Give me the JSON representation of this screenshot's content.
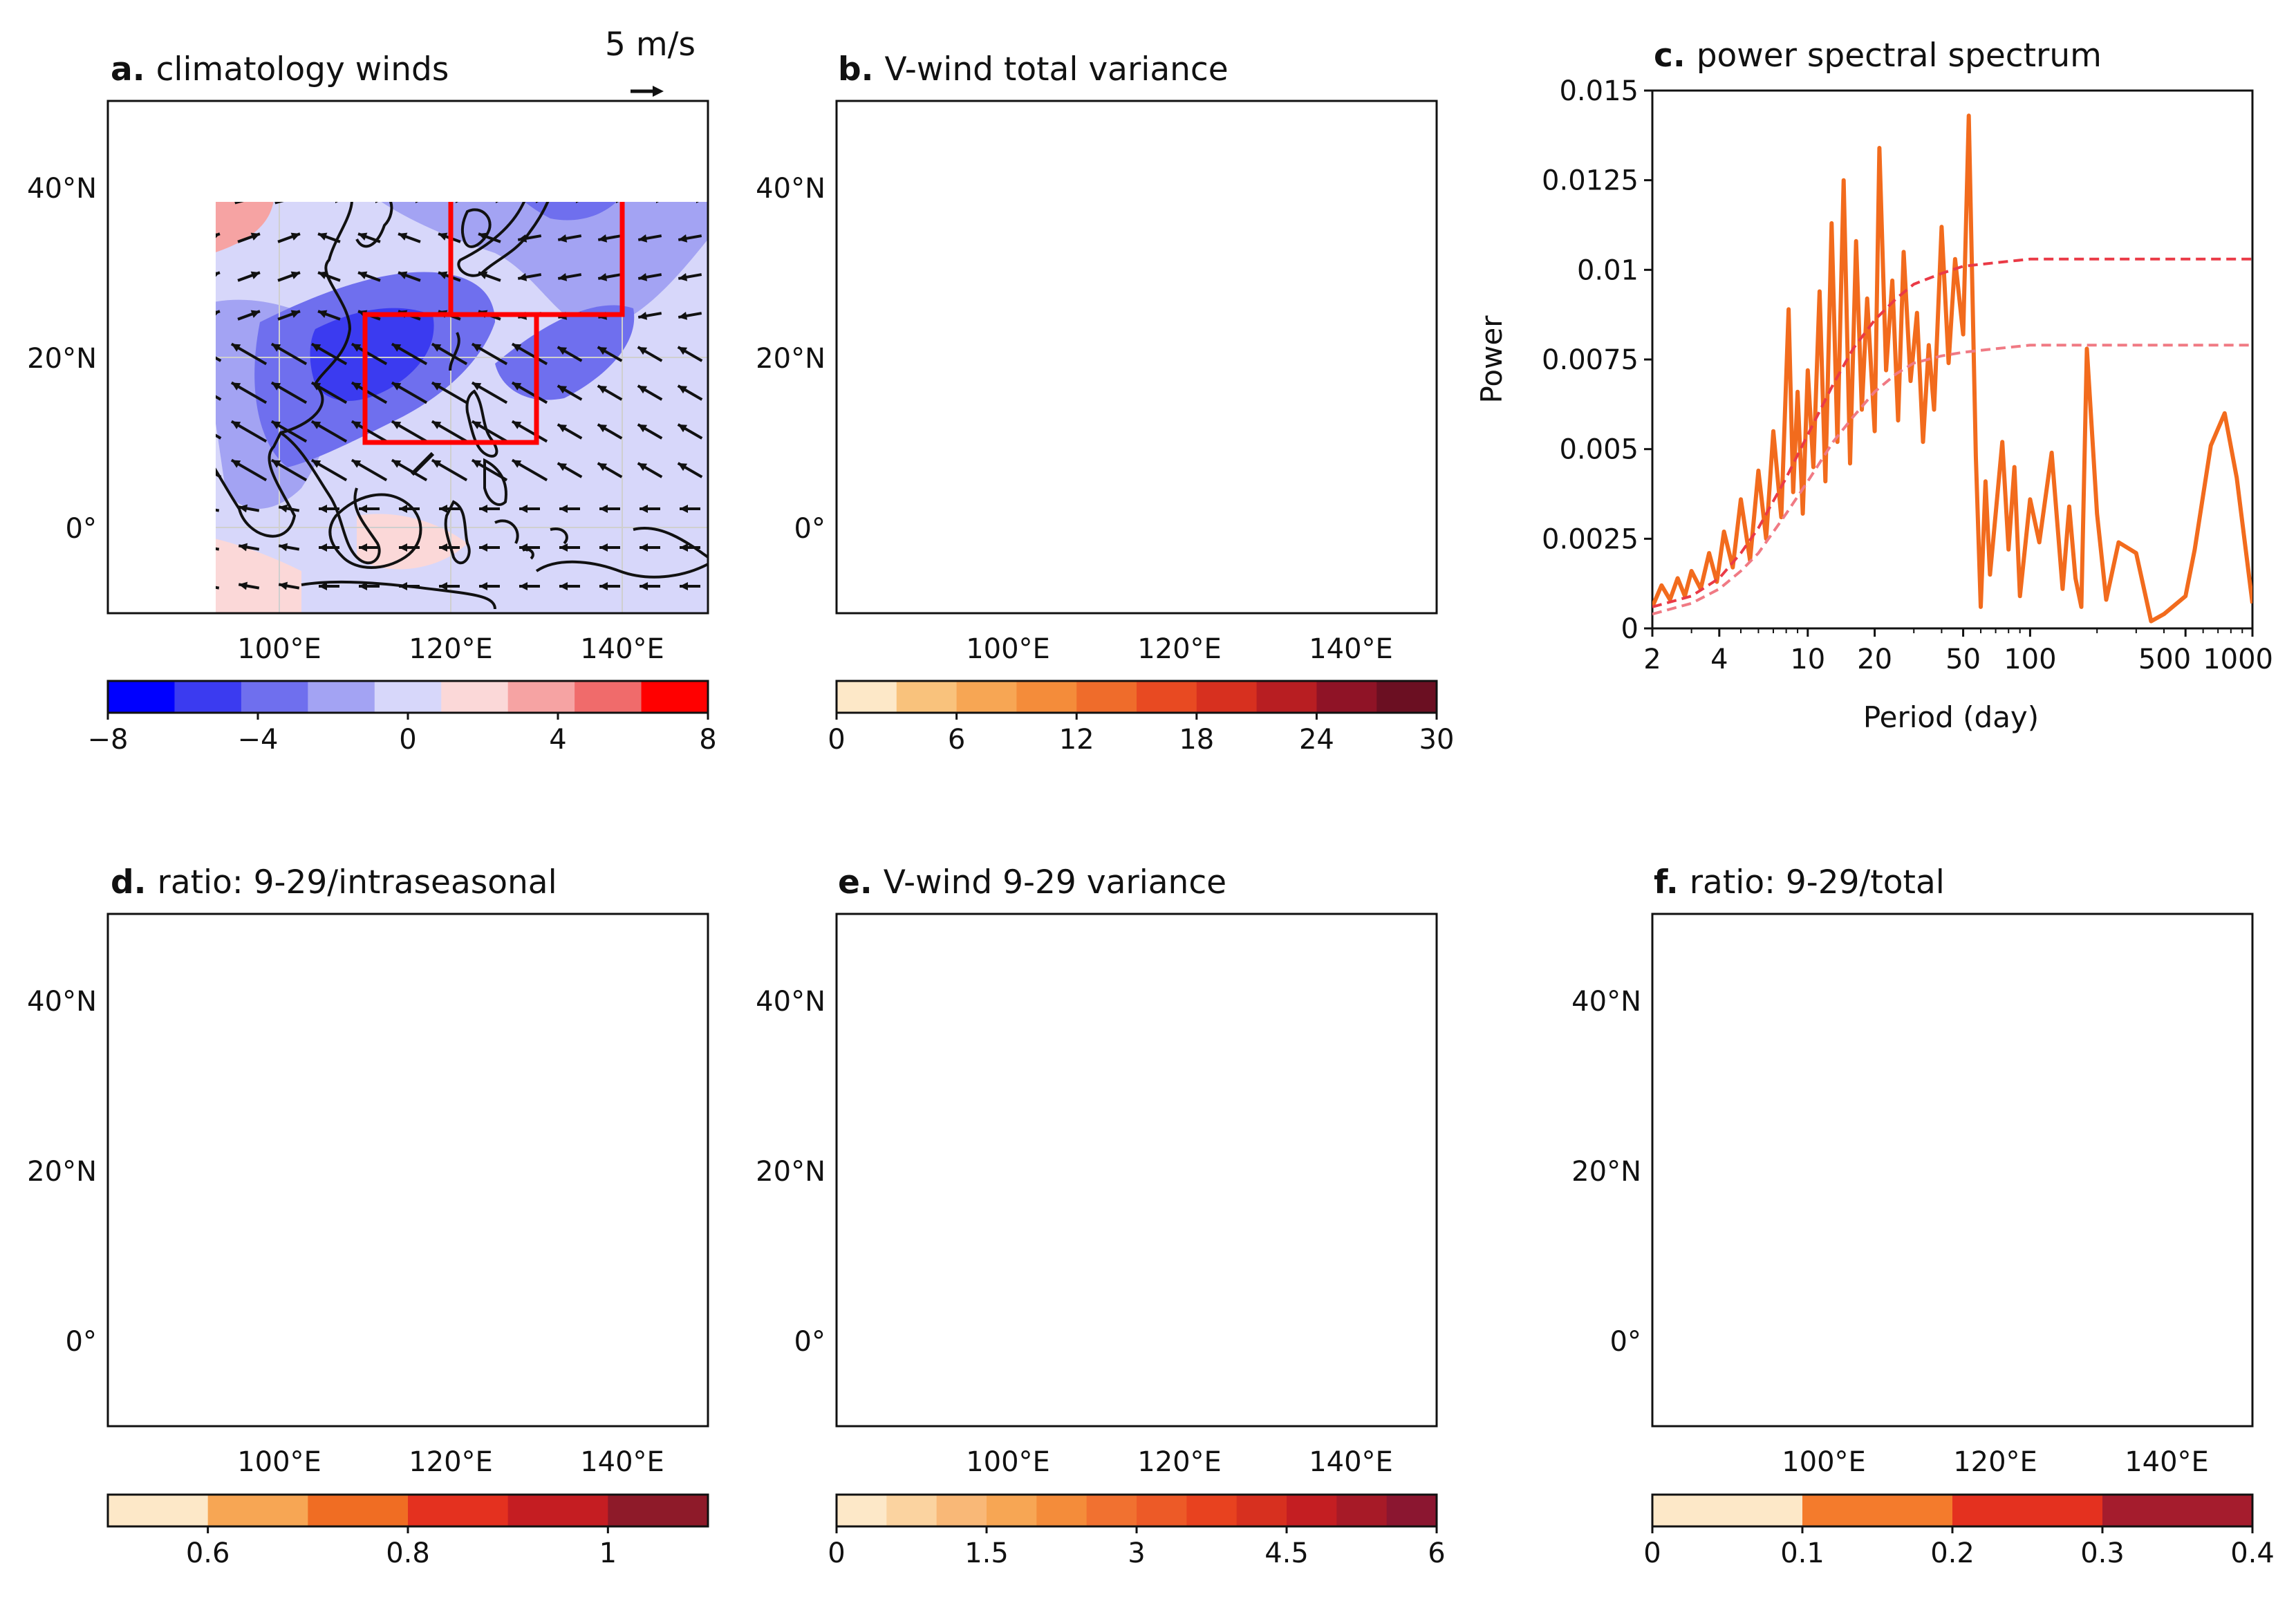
{
  "panels": {
    "a": {
      "letter": "a.",
      "title": "climatology winds",
      "arrow_label": "5 m/s"
    },
    "b": {
      "letter": "b.",
      "title": "V-wind total variance"
    },
    "c": {
      "letter": "c.",
      "title": "power spectral spectrum"
    },
    "d": {
      "letter": "d.",
      "title": "ratio: 9-29/intraseasonal"
    },
    "e": {
      "letter": "e.",
      "title": "V-wind 9-29 variance"
    },
    "f": {
      "letter": "f.",
      "title": "ratio: 9-29/total"
    }
  },
  "map_axes": {
    "lat_labels": [
      "40°N",
      "20°N",
      "0°"
    ],
    "lon_labels": [
      "100°E",
      "120°E",
      "140°E"
    ]
  },
  "colorbars": {
    "a": {
      "ticks": [
        "−8",
        "−4",
        "0",
        "4",
        "8"
      ],
      "colors": [
        "#0000ff",
        "#3b3bf0",
        "#6f6fee",
        "#a3a3f3",
        "#d7d7fa",
        "#fbd8d8",
        "#f6a3a3",
        "#f06b6b",
        "#ff0000"
      ]
    },
    "b": {
      "ticks": [
        "0",
        "6",
        "12",
        "18",
        "24",
        "30"
      ],
      "colors": [
        "#fde8c8",
        "#f9c27c",
        "#f7a654",
        "#f48c3a",
        "#ef6c2b",
        "#e84a22",
        "#d7301f",
        "#b81e22",
        "#8f1326",
        "#6b0f22"
      ]
    },
    "d": {
      "ticks": [
        "0.6",
        "0.8",
        "1"
      ],
      "colors": [
        "#fde8c8",
        "#f7a654",
        "#f06d23",
        "#e4311f",
        "#c51d22",
        "#8e1a29"
      ]
    },
    "e": {
      "ticks": [
        "0",
        "1.5",
        "3",
        "4.5",
        "6"
      ],
      "colors": [
        "#fde8c8",
        "#fbd3a0",
        "#f9b877",
        "#f7a654",
        "#f48c3a",
        "#f17130",
        "#ed5a27",
        "#e8421f",
        "#d7301f",
        "#c41e22",
        "#a71a27",
        "#8b1630"
      ]
    },
    "f": {
      "ticks": [
        "0",
        "0.1",
        "0.2",
        "0.3",
        "0.4"
      ],
      "colors": [
        "#fde8c8",
        "#f47b2c",
        "#e4311f",
        "#a51c2d"
      ]
    }
  },
  "chart_data": [
    {
      "type": "line",
      "panel": "c",
      "title": "power spectral spectrum",
      "xlabel": "Period (day)",
      "ylabel": "Power",
      "xscale": "log",
      "xlim": [
        2,
        1000
      ],
      "ylim": [
        0,
        0.015
      ],
      "xticks": [
        "2",
        "4",
        "10",
        "20",
        "50",
        "100",
        "500",
        "1000"
      ],
      "xtick_values": [
        2,
        4,
        10,
        20,
        50,
        100,
        500,
        1000
      ],
      "yticks": [
        "0",
        "0.0025",
        "0.005",
        "0.0075",
        "0.01",
        "0.0125",
        "0.015"
      ],
      "ytick_values": [
        0,
        0.0025,
        0.005,
        0.0075,
        0.01,
        0.0125,
        0.015
      ],
      "series": [
        {
          "name": "spectrum",
          "color": "#f26b1d",
          "x": [
            2,
            2.2,
            2.4,
            2.6,
            2.8,
            3.0,
            3.3,
            3.6,
            3.9,
            4.2,
            4.6,
            5.0,
            5.5,
            6.0,
            6.5,
            7.0,
            7.6,
            8.2,
            8.6,
            9.0,
            9.5,
            10,
            10.6,
            11.3,
            12,
            12.8,
            13.6,
            14.5,
            15.5,
            16.5,
            17.5,
            18.5,
            20,
            21,
            22.5,
            24,
            25.5,
            27,
            29,
            31,
            33,
            35,
            37,
            40,
            43,
            46,
            50,
            53,
            57,
            60,
            63,
            66,
            70,
            75,
            80,
            85,
            90,
            100,
            110,
            125,
            140,
            150,
            160,
            170,
            180,
            200,
            220,
            250,
            300,
            350,
            400,
            500,
            550,
            650,
            750,
            850,
            1000
          ],
          "y": [
            0.0006,
            0.0012,
            0.0008,
            0.0014,
            0.0009,
            0.0016,
            0.0011,
            0.0021,
            0.0013,
            0.0027,
            0.0017,
            0.0036,
            0.0019,
            0.0044,
            0.0025,
            0.0055,
            0.0031,
            0.0089,
            0.0038,
            0.0066,
            0.0032,
            0.0072,
            0.0045,
            0.0094,
            0.0041,
            0.0113,
            0.0052,
            0.0125,
            0.0046,
            0.0108,
            0.0061,
            0.0092,
            0.0055,
            0.0134,
            0.0072,
            0.0097,
            0.0058,
            0.0105,
            0.0069,
            0.0088,
            0.0052,
            0.0079,
            0.0061,
            0.0112,
            0.0074,
            0.0103,
            0.0082,
            0.0143,
            0.0048,
            0.0006,
            0.0041,
            0.0015,
            0.0032,
            0.0052,
            0.0022,
            0.0045,
            0.0009,
            0.0036,
            0.0024,
            0.0049,
            0.0011,
            0.0034,
            0.0014,
            0.0006,
            0.0078,
            0.0032,
            0.0008,
            0.0024,
            0.0021,
            0.0002,
            0.0004,
            0.0009,
            0.0022,
            0.0051,
            0.006,
            0.0042,
            0.0007
          ]
        },
        {
          "name": "significance-upper",
          "color": "#ea3a46",
          "dashed": true,
          "x": [
            2,
            3,
            4,
            5,
            6,
            8,
            10,
            13,
            16,
            20,
            25,
            30,
            40,
            50,
            70,
            100,
            150,
            200,
            300,
            500,
            1000
          ],
          "y": [
            0.0006,
            0.0009,
            0.0014,
            0.0021,
            0.0028,
            0.0042,
            0.0054,
            0.0068,
            0.0078,
            0.0086,
            0.0092,
            0.0096,
            0.0099,
            0.0101,
            0.0102,
            0.0103,
            0.0103,
            0.0103,
            0.0103,
            0.0103,
            0.0103
          ]
        },
        {
          "name": "significance-lower",
          "color": "#f07a84",
          "dashed": true,
          "x": [
            2,
            3,
            4,
            5,
            6,
            8,
            10,
            13,
            16,
            20,
            25,
            30,
            40,
            50,
            70,
            100,
            150,
            200,
            300,
            500,
            1000
          ],
          "y": [
            0.0004,
            0.0007,
            0.0011,
            0.0016,
            0.0021,
            0.0032,
            0.0041,
            0.0052,
            0.0059,
            0.0066,
            0.0071,
            0.0074,
            0.0076,
            0.0077,
            0.0078,
            0.0079,
            0.0079,
            0.0079,
            0.0079,
            0.0079,
            0.0079
          ]
        }
      ]
    }
  ]
}
